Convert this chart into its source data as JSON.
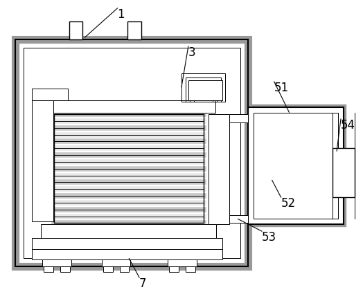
{
  "bg_color": "#ffffff",
  "line_color": "#000000",
  "gray_color": "#999999",
  "coil_colors": [
    "#c8c8c8",
    "#e8e8e8"
  ],
  "pink_color": "#e0b0b0",
  "green_color": "#b0c8b0",
  "fig_width": 5.24,
  "fig_height": 4.22,
  "dpi": 100
}
